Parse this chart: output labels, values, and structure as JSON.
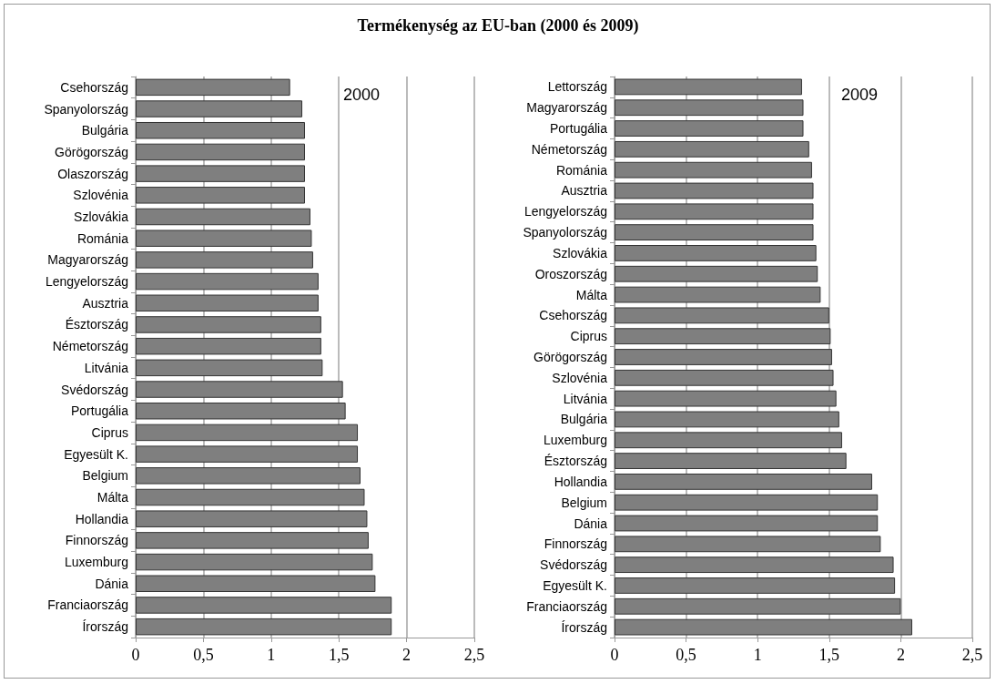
{
  "chart_data": [
    {
      "type": "bar",
      "orientation": "horizontal",
      "title": "Termékenység az EU-ban (2000 és 2009)",
      "annotations": [
        "2000"
      ],
      "categories": [
        "Csehország",
        "Spanyolország",
        "Bulgária",
        "Görögország",
        "Olaszország",
        "Szlovénia",
        "Szlovákia",
        "Románia",
        "Magyarország",
        "Lengyelország",
        "Ausztria",
        "Észtország",
        "Németország",
        "Litvánia",
        "Svédország",
        "Portugália",
        "Ciprus",
        "Egyesült K.",
        "Belgium",
        "Málta",
        "Hollandia",
        "Finnország",
        "Luxemburg",
        "Dánia",
        "Franciaország",
        "Írország"
      ],
      "values": [
        1.14,
        1.23,
        1.25,
        1.25,
        1.25,
        1.25,
        1.29,
        1.3,
        1.31,
        1.35,
        1.35,
        1.37,
        1.37,
        1.38,
        1.53,
        1.55,
        1.64,
        1.64,
        1.66,
        1.69,
        1.71,
        1.72,
        1.75,
        1.77,
        1.89,
        1.89
      ],
      "color": "#7f7f7f",
      "xlim": [
        0,
        2.5
      ],
      "xticks": [
        0,
        {
          "value": 0.5,
          "label": "0,5"
        },
        1,
        {
          "value": 1.5,
          "label": "1,5"
        },
        2,
        {
          "value": 2.5,
          "label": "2,5"
        }
      ],
      "grid": "x"
    },
    {
      "type": "bar",
      "orientation": "horizontal",
      "annotations": [
        "2009"
      ],
      "categories": [
        "Lettország",
        "Magyarország",
        "Portugália",
        "Németország",
        "Románia",
        "Ausztria",
        "Lengyelország",
        "Spanyolország",
        "Szlovákia",
        "Oroszország",
        "Málta",
        "Csehország",
        "Ciprus",
        "Görögország",
        "Szlovénia",
        "Litvánia",
        "Bulgária",
        "Luxemburg",
        "Észtország",
        "Hollandia",
        "Belgium",
        "Dánia",
        "Finnország",
        "Svédország",
        "Egyesült K.",
        "Franciaország",
        "Írország"
      ],
      "values": [
        1.31,
        1.32,
        1.32,
        1.36,
        1.38,
        1.39,
        1.39,
        1.39,
        1.41,
        1.42,
        1.44,
        1.5,
        1.51,
        1.52,
        1.53,
        1.55,
        1.57,
        1.59,
        1.62,
        1.8,
        1.84,
        1.84,
        1.86,
        1.95,
        1.96,
        2.0,
        2.08
      ],
      "color": "#7f7f7f",
      "xlim": [
        0,
        2.5
      ],
      "xticks": [
        0,
        {
          "value": 0.5,
          "label": "0,5"
        },
        1,
        {
          "value": 1.5,
          "label": "1,5"
        },
        2,
        {
          "value": 2.5,
          "label": "2,5"
        }
      ],
      "grid": "x"
    }
  ]
}
